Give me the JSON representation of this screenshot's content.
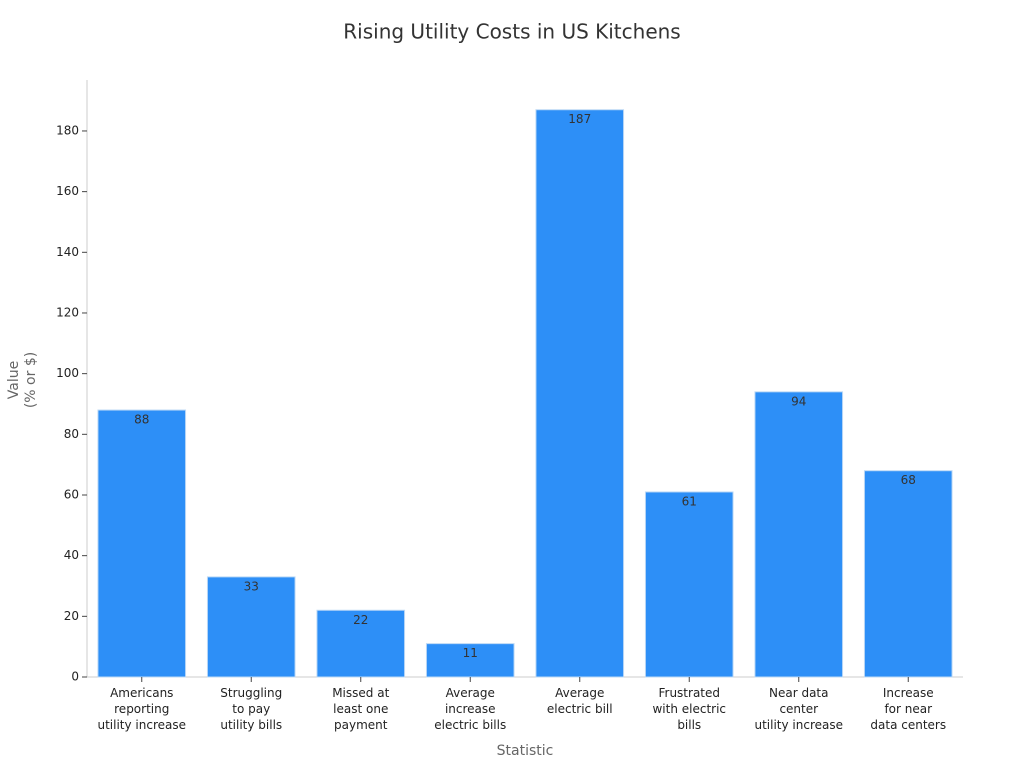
{
  "chart_data": {
    "type": "bar",
    "title": "Rising Utility Costs in US Kitchens",
    "x_label": "Statistic",
    "y_label": "Value\n(% or $)",
    "categories": [
      "Americans\nreporting\nutility increase",
      "Struggling\nto pay\nutility bills",
      "Missed at\nleast one\npayment",
      "Average\nincrease\nelectric bills",
      "Average\nelectric bill",
      "Frustrated\nwith electric\nbills",
      "Near data\ncenter\nutility increase",
      "Increase\nfor near\ndata centers"
    ],
    "values": [
      88,
      33,
      22,
      11,
      187,
      61,
      94,
      68
    ],
    "color": "#2d8ff7",
    "ylim": [
      0,
      196.8
    ],
    "yticks": [
      0,
      20,
      40,
      60,
      80,
      100,
      120,
      140,
      160,
      180
    ],
    "grid": false
  }
}
